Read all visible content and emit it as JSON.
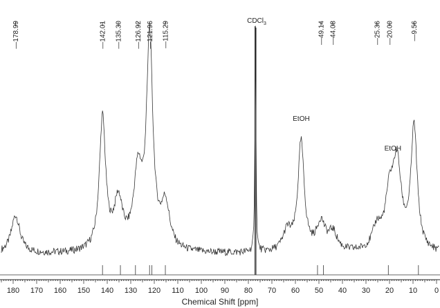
{
  "chart_data": {
    "type": "line",
    "title": "",
    "xlabel": "Chemical Shift [ppm]",
    "ylabel": "",
    "x_reversed": true,
    "xlim": [
      185,
      0
    ],
    "x_major_ticks": [
      180,
      170,
      160,
      150,
      140,
      130,
      120,
      110,
      100,
      90,
      80,
      70,
      60,
      50,
      40,
      30,
      20,
      10,
      0
    ],
    "grid": false,
    "legend": "none",
    "peak_labels": [
      "178.99",
      "142.01",
      "135.30",
      "126.92",
      "121.96",
      "115.29",
      "49.14",
      "44.08",
      "25.36",
      "20.00",
      "9.56"
    ],
    "solvent_label_parts": {
      "base": "CDCl",
      "sub": "3"
    },
    "solvent_shift": 77.0,
    "annotations": [
      {
        "text": "EtOH",
        "x": 57.5
      },
      {
        "text": "EtOH",
        "x": 16.8
      }
    ],
    "baseline_level": 0.07,
    "series": [
      {
        "values": [
          [
            178.99,
            0.3
          ],
          [
            142.01,
            0.87
          ],
          [
            135.3,
            0.36
          ],
          [
            126.92,
            0.52
          ],
          [
            121.96,
            1.33
          ],
          [
            115.29,
            0.34
          ],
          [
            77.0,
            1.45
          ],
          [
            63.5,
            0.19
          ],
          [
            57.6,
            0.73
          ],
          [
            49.14,
            0.24
          ],
          [
            44.08,
            0.18
          ],
          [
            25.36,
            0.2
          ],
          [
            20.0,
            0.36
          ],
          [
            16.8,
            0.56
          ],
          [
            9.56,
            0.81
          ]
        ]
      }
    ],
    "reference_lines": [
      142.01,
      134.4,
      128.0,
      122.0,
      121.0,
      115.29,
      50.6,
      48.1,
      20.5,
      7.7
    ]
  }
}
